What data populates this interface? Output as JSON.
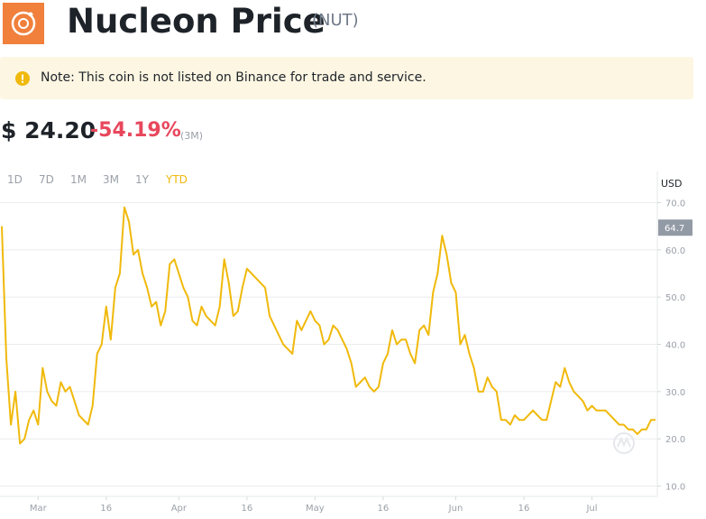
{
  "header": {
    "title": "Nucleon Price",
    "symbol": "(NUT)"
  },
  "note": "Note: This coin is not listed on Binance for trade and service.",
  "price": {
    "value": "$ 24.20",
    "change": "-54.19%",
    "period": "(3M)"
  },
  "range_tabs": [
    "1D",
    "7D",
    "1M",
    "3M",
    "1Y",
    "YTD"
  ],
  "active_tab": 5,
  "chart_data": {
    "type": "line",
    "axis_unit": "USD",
    "color": "#f0b90b",
    "categories": [
      null,
      null,
      null,
      null,
      null,
      null,
      null,
      null,
      "Mar",
      null,
      null,
      null,
      null,
      null,
      null,
      null,
      null,
      null,
      null,
      null,
      null,
      null,
      null,
      "16",
      null,
      null,
      null,
      null,
      null,
      null,
      null,
      null,
      null,
      null,
      null,
      null,
      null,
      null,
      null,
      "Apr",
      null,
      null,
      null,
      null,
      null,
      null,
      null,
      null,
      null,
      null,
      null,
      null,
      null,
      null,
      "16",
      null,
      null,
      null,
      null,
      null,
      null,
      null,
      null,
      null,
      null,
      null,
      null,
      null,
      null,
      "May",
      null,
      null,
      null,
      null,
      null,
      null,
      null,
      null,
      null,
      null,
      null,
      null,
      null,
      null,
      "16",
      null,
      null,
      null,
      null,
      null,
      null,
      null,
      null,
      null,
      null,
      null,
      null,
      null,
      null,
      null,
      "Jun",
      null,
      null,
      null,
      null,
      null,
      null,
      null,
      null,
      null,
      null,
      null,
      null,
      null,
      null,
      "16",
      null,
      null,
      null,
      null,
      null,
      null,
      null,
      null,
      null,
      null,
      null,
      null,
      null,
      null,
      "Jul",
      null,
      null,
      null,
      null,
      null,
      null,
      null,
      null,
      null,
      null,
      null,
      null,
      null,
      null
    ],
    "values": [
      65,
      37,
      23,
      30,
      19,
      20,
      24,
      26,
      23,
      35,
      30,
      28,
      27,
      32,
      30,
      31,
      28,
      25,
      24,
      23,
      27,
      38,
      40,
      48,
      41,
      52,
      55,
      69,
      66,
      59,
      60,
      55,
      52,
      48,
      49,
      44,
      47,
      57,
      58,
      55,
      52,
      50,
      45,
      44,
      48,
      46,
      45,
      44,
      48,
      58,
      53,
      46,
      47,
      52,
      56,
      55,
      54,
      53,
      52,
      46,
      44,
      42,
      40,
      39,
      38,
      45,
      43,
      45,
      47,
      45,
      44,
      40,
      41,
      44,
      43,
      41,
      39,
      36,
      31,
      32,
      33,
      31,
      30,
      31,
      36,
      38,
      43,
      40,
      41,
      41,
      38,
      36,
      43,
      44,
      42,
      51,
      55,
      63,
      59,
      53,
      51,
      40,
      42,
      38,
      35,
      30,
      30,
      33,
      31,
      30,
      24,
      24,
      23,
      25,
      24,
      24,
      25,
      26,
      25,
      24,
      24,
      28,
      32,
      31,
      35,
      32,
      30,
      29,
      28,
      26,
      27,
      26,
      26,
      26,
      25,
      24,
      23,
      23,
      22,
      22,
      21,
      22,
      22,
      24,
      24
    ],
    "ylim": [
      8,
      72
    ],
    "yticks": [
      {
        "value": 10,
        "label": "10.0"
      },
      {
        "value": 20,
        "label": "20.0"
      },
      {
        "value": 30,
        "label": "30.0"
      },
      {
        "value": 40,
        "label": "40.0"
      },
      {
        "value": 50,
        "label": "50.0"
      },
      {
        "value": 60,
        "label": "60.0"
      },
      {
        "value": 70,
        "label": "70.0"
      }
    ],
    "grid": true,
    "price_marker": 64.7
  }
}
